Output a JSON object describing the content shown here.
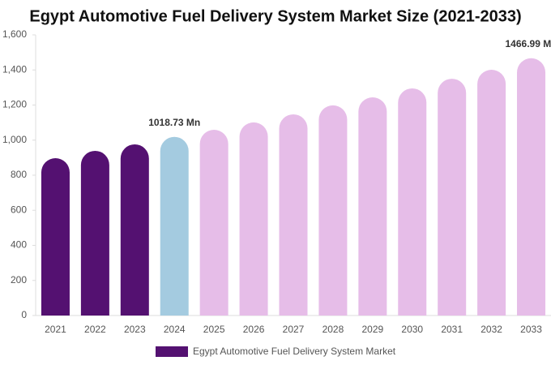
{
  "chart_data": {
    "type": "bar",
    "title": "Egypt Automotive Fuel Delivery System Market Size (2021-2033)",
    "categories": [
      "2021",
      "2022",
      "2023",
      "2024",
      "2025",
      "2026",
      "2027",
      "2028",
      "2029",
      "2030",
      "2031",
      "2032",
      "2033"
    ],
    "series": [
      {
        "name": "Egypt Automotive Fuel Delivery System Market",
        "color": "#541171",
        "values": [
          897,
          939,
          976,
          1018.73,
          1059,
          1101,
          1147,
          1198,
          1244,
          1295,
          1350,
          1401,
          1466.99
        ],
        "value_labels": [
          null,
          null,
          null,
          "1018.73 Mn",
          null,
          null,
          null,
          null,
          null,
          null,
          null,
          null,
          "1466.99 Mn"
        ],
        "colors": [
          "#541171",
          "#541171",
          "#541171",
          "#a4cbe0",
          "#e6bde8",
          "#e6bde8",
          "#e6bde8",
          "#e6bde8",
          "#e6bde8",
          "#e6bde8",
          "#e6bde8",
          "#e6bde8",
          "#e6bde8"
        ]
      }
    ],
    "ylim": [
      0,
      1600
    ],
    "yticks": [
      0,
      200,
      400,
      600,
      800,
      {
        "value": 1000,
        "label": "1,000"
      },
      {
        "value": 1200,
        "label": "1,200"
      },
      {
        "value": 1400,
        "label": "1,400"
      },
      {
        "value": 1600,
        "label": "1,600"
      }
    ]
  }
}
